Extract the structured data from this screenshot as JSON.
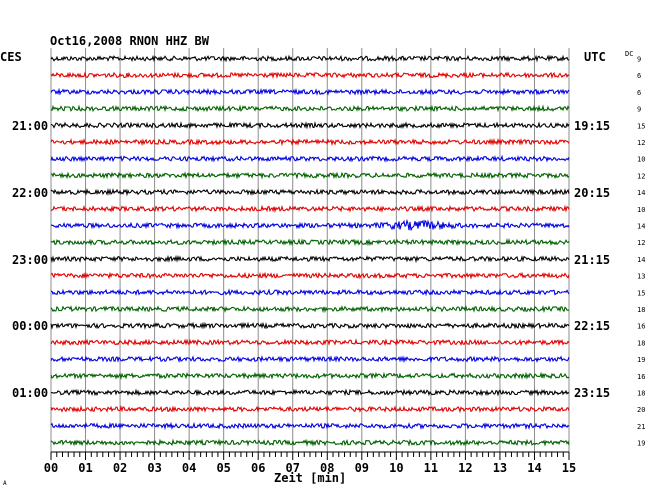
{
  "header": {
    "title": "Oct16,2008   RNON HHZ BW",
    "left_zone": "CES",
    "right_zone": "UTC",
    "dc_label": "DC"
  },
  "left_time_labels": [
    "21:00",
    "22:00",
    "23:00",
    "00:00",
    "01:00"
  ],
  "right_time_labels": [
    "19:15",
    "20:15",
    "21:15",
    "22:15",
    "23:15"
  ],
  "dc_values": [
    "9",
    "6",
    "6",
    "9",
    "15",
    "12",
    "10",
    "12",
    "14",
    "10",
    "14",
    "12",
    "14",
    "13",
    "15",
    "18",
    "16",
    "18",
    "19",
    "16",
    "18",
    "20",
    "21",
    "19"
  ],
  "x_axis": {
    "label": "Zeit [min]",
    "ticks": [
      "00",
      "01",
      "02",
      "03",
      "04",
      "05",
      "06",
      "07",
      "08",
      "09",
      "10",
      "11",
      "12",
      "13",
      "14",
      "15"
    ],
    "range_min": [
      0,
      15
    ]
  },
  "traces": {
    "count": 24,
    "color_cycle": [
      "#000000",
      "#e00000",
      "#0000e0",
      "#006000"
    ],
    "event": {
      "trace_index": 10,
      "minute_start": 9.2,
      "minute_end": 12.0
    }
  },
  "corner_mark": "A"
}
